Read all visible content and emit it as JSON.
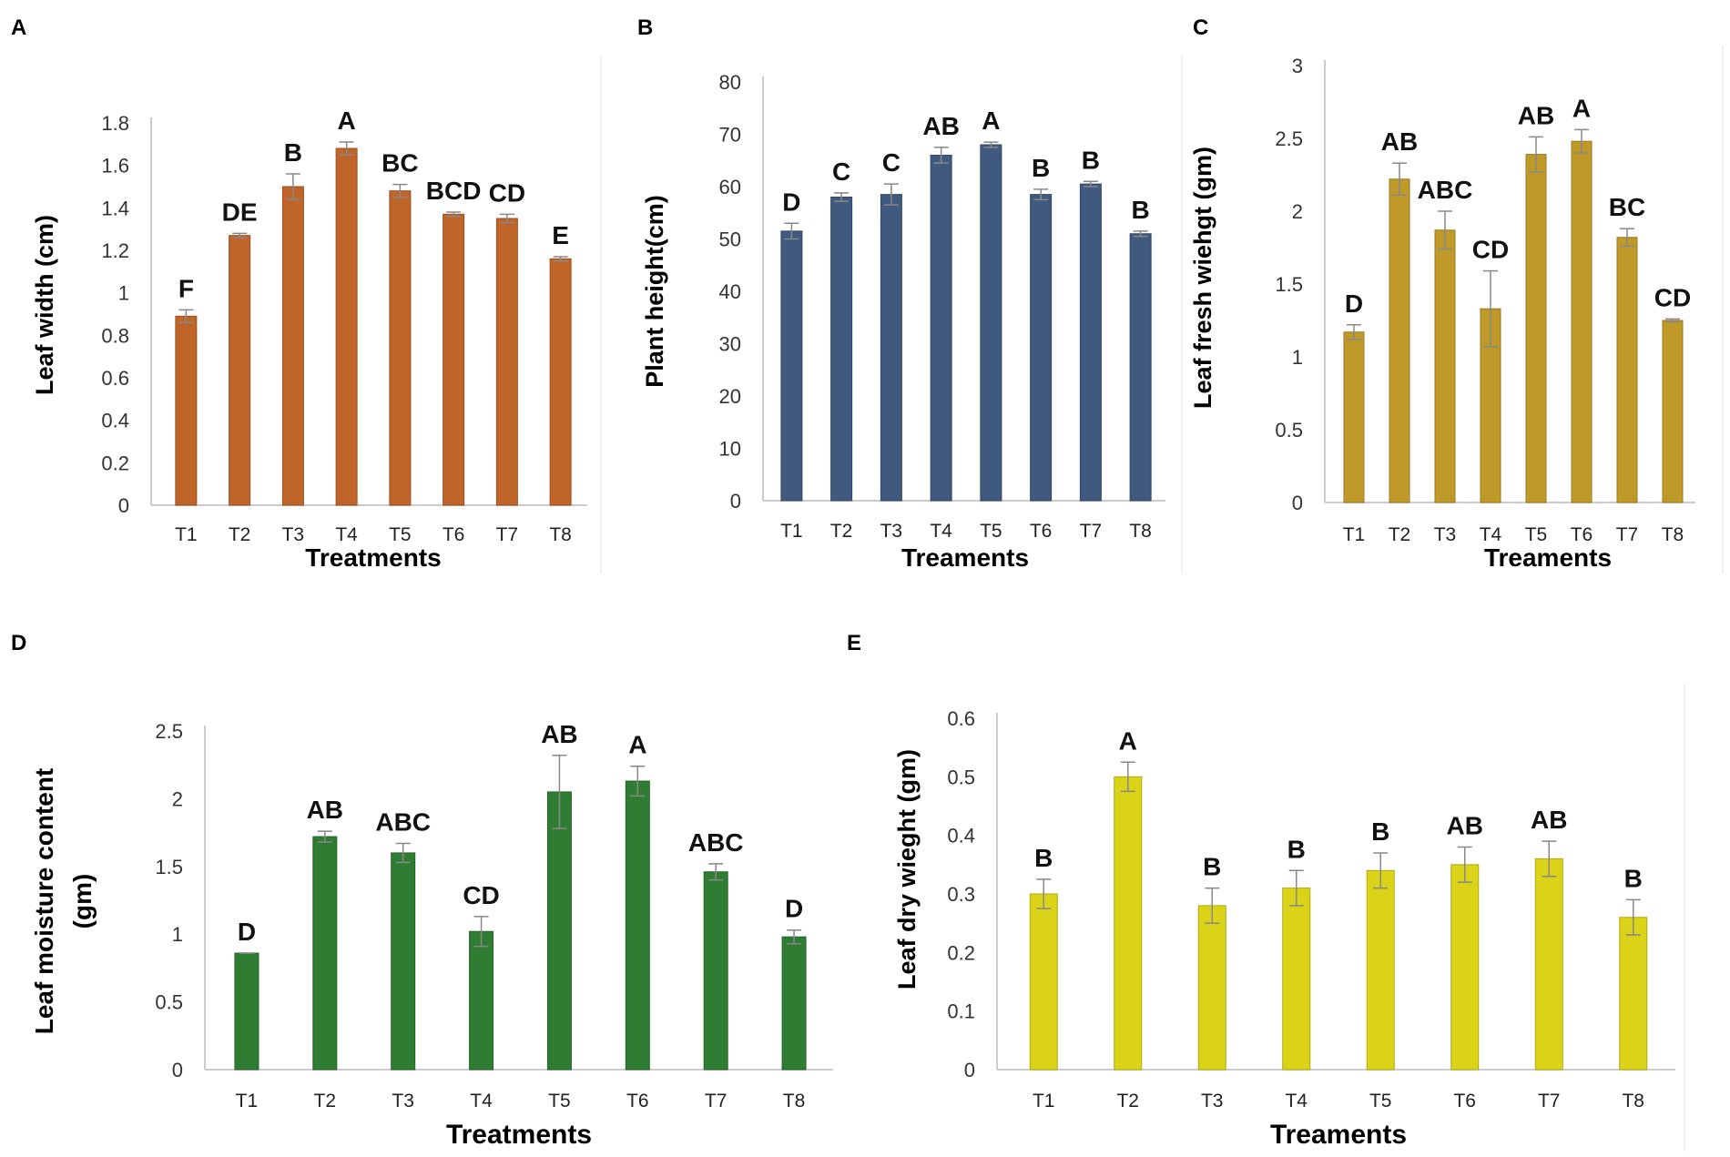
{
  "chart_data": [
    {
      "panel": "A",
      "type": "bar",
      "categories": [
        "T1",
        "T2",
        "T3",
        "T4",
        "T5",
        "T6",
        "T7",
        "T8"
      ],
      "values": [
        0.89,
        1.27,
        1.5,
        1.68,
        1.48,
        1.37,
        1.35,
        1.16
      ],
      "errors": [
        0.03,
        0.01,
        0.06,
        0.03,
        0.03,
        0.01,
        0.02,
        0.01
      ],
      "letters": [
        "F",
        "DE",
        "B",
        "A",
        "BC",
        "BCD",
        "CD",
        "E"
      ],
      "xlabel": "Treatments",
      "ylabel": "Leaf width (cm)",
      "ylim": [
        0,
        1.8
      ],
      "yticks": [
        "0",
        "0.2",
        "0.4",
        "0.6",
        "0.8",
        "1",
        "1.2",
        "1.4",
        "1.6",
        "1.8"
      ],
      "color": "#c0652a"
    },
    {
      "panel": "B",
      "type": "bar",
      "categories": [
        "T1",
        "T2",
        "T3",
        "T4",
        "T5",
        "T6",
        "T7",
        "T8"
      ],
      "values": [
        51.5,
        58,
        58.5,
        66,
        68,
        58.5,
        60.5,
        51
      ],
      "errors": [
        1.5,
        0.8,
        2,
        1.5,
        0.5,
        1,
        0.5,
        0.5
      ],
      "letters": [
        "D",
        "C",
        "C",
        "AB",
        "A",
        "B",
        "B",
        "B"
      ],
      "xlabel": "Treaments",
      "ylabel": "Plant height(cm)",
      "ylim": [
        0,
        80
      ],
      "yticks": [
        "0",
        "10",
        "20",
        "30",
        "40",
        "50",
        "60",
        "70",
        "80"
      ],
      "color": "#3f5a7e"
    },
    {
      "panel": "C",
      "type": "bar",
      "categories": [
        "T1",
        "T2",
        "T3",
        "T4",
        "T5",
        "T6",
        "T7",
        "T8"
      ],
      "values": [
        1.17,
        2.22,
        1.87,
        1.33,
        2.39,
        2.48,
        1.82,
        1.25
      ],
      "errors": [
        0.05,
        0.11,
        0.13,
        0.26,
        0.12,
        0.08,
        0.06,
        0.01
      ],
      "letters": [
        "D",
        "AB",
        "ABC",
        "CD",
        "AB",
        "A",
        "BC",
        "CD"
      ],
      "xlabel": "Treaments",
      "ylabel": "Leaf fresh wiehgt (gm)",
      "ylim": [
        0,
        3
      ],
      "yticks": [
        "0",
        "0.5",
        "1",
        "1.5",
        "2",
        "2.5",
        "3"
      ],
      "color": "#c09a28"
    },
    {
      "panel": "D",
      "type": "bar",
      "categories": [
        "T1",
        "T2",
        "T3",
        "T4",
        "T5",
        "T6",
        "T7",
        "T8"
      ],
      "values": [
        0.86,
        1.72,
        1.6,
        1.02,
        2.05,
        2.13,
        1.46,
        0.98
      ],
      "errors": [
        0.0,
        0.04,
        0.07,
        0.11,
        0.27,
        0.11,
        0.06,
        0.05
      ],
      "letters": [
        "D",
        "AB",
        "ABC",
        "CD",
        "AB",
        "A",
        "ABC",
        "D"
      ],
      "xlabel": "Treatments",
      "ylabel": "Leaf moisture content (gm)",
      "ylabel_lines": [
        "Leaf moisture content",
        "(gm)"
      ],
      "ylim": [
        0,
        2.5
      ],
      "yticks": [
        "0",
        "0.5",
        "1",
        "1.5",
        "2",
        "2.5"
      ],
      "color": "#2e7d32"
    },
    {
      "panel": "E",
      "type": "bar",
      "categories": [
        "T1",
        "T2",
        "T3",
        "T4",
        "T5",
        "T6",
        "T7",
        "T8"
      ],
      "values": [
        0.3,
        0.5,
        0.28,
        0.31,
        0.34,
        0.35,
        0.36,
        0.26
      ],
      "errors": [
        0.025,
        0.025,
        0.03,
        0.03,
        0.03,
        0.03,
        0.03,
        0.03
      ],
      "letters": [
        "B",
        "A",
        "B",
        "B",
        "B",
        "AB",
        "AB",
        "B"
      ],
      "xlabel": "Treaments",
      "ylabel": "Leaf dry wieght (gm)",
      "ylim": [
        0,
        0.6
      ],
      "yticks": [
        "0",
        "0.1",
        "0.2",
        "0.3",
        "0.4",
        "0.5",
        "0.6"
      ],
      "color": "#dbd317"
    }
  ]
}
